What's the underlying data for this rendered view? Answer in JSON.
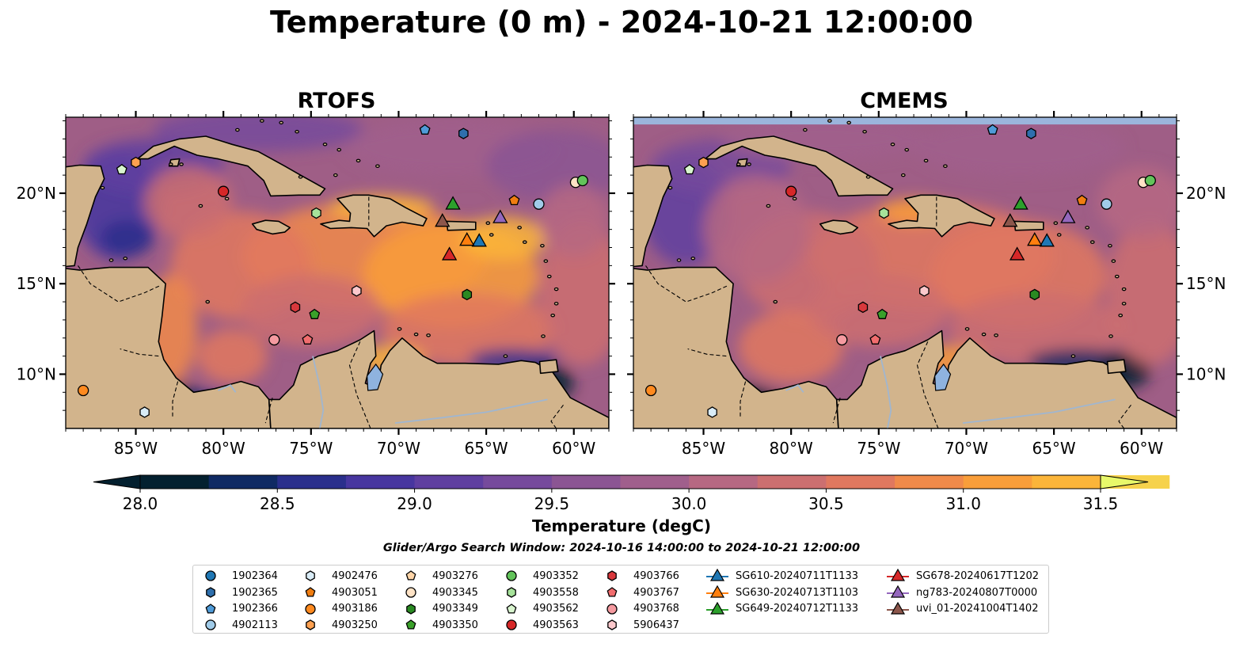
{
  "title": "Temperature (0 m) - 2024-10-21 12:00:00",
  "panels": [
    {
      "title": "RTOFS"
    },
    {
      "title": "CMEMS"
    }
  ],
  "axes": {
    "lon_range": [
      -89,
      -58
    ],
    "lat_range": [
      7,
      24.2
    ],
    "lon_ticks": [
      {
        "value": -85,
        "label": "85°W"
      },
      {
        "value": -80,
        "label": "80°W"
      },
      {
        "value": -75,
        "label": "75°W"
      },
      {
        "value": -70,
        "label": "70°W"
      },
      {
        "value": -65,
        "label": "65°W"
      },
      {
        "value": -60,
        "label": "60°W"
      }
    ],
    "lat_ticks": [
      {
        "value": 20,
        "label": "20°N"
      },
      {
        "value": 15,
        "label": "15°N"
      },
      {
        "value": 10,
        "label": "10°N"
      }
    ]
  },
  "colorbar": {
    "label": "Temperature (degC)",
    "min": 28.0,
    "max": 31.5,
    "step": 0.25,
    "ticks": [
      {
        "value": 28.0,
        "label": "28.0"
      },
      {
        "value": 28.5,
        "label": "28.5"
      },
      {
        "value": 29.0,
        "label": "29.0"
      },
      {
        "value": 29.5,
        "label": "29.5"
      },
      {
        "value": 30.0,
        "label": "30.0"
      },
      {
        "value": 30.5,
        "label": "30.5"
      },
      {
        "value": 31.0,
        "label": "31.0"
      },
      {
        "value": 31.5,
        "label": "31.5"
      }
    ],
    "colors": [
      "#03202f",
      "#0f2a63",
      "#2a2f8c",
      "#47369f",
      "#5f3fa0",
      "#764a9c",
      "#8b5593",
      "#a05f8c",
      "#b66882",
      "#cc6f70",
      "#e0785f",
      "#f08a4a",
      "#f99e3a",
      "#fbb53a",
      "#f6d24c"
    ],
    "extend_under": "#03202f",
    "extend_over": "#e8f86a"
  },
  "search_window": "Glider/Argo Search Window: 2024-10-16 14:00:00 to 2024-10-21 12:00:00",
  "colors": {
    "land": "#d2b48c",
    "coast": "#000000",
    "rivers": "#a0b6d0",
    "lake": "#8fb3df",
    "ocean_base": "#9f5e86",
    "no_data_band": "#9bb5dc"
  },
  "floats": [
    {
      "id": "1902364",
      "marker": "circle",
      "color": "#1f77b4",
      "lon": null,
      "lat": null
    },
    {
      "id": "1902365",
      "marker": "hexagon",
      "color": "#2e6fad",
      "lon": -66.3,
      "lat": 23.3
    },
    {
      "id": "1902366",
      "marker": "pentagon",
      "color": "#4f9bd8",
      "lon": -68.5,
      "lat": 23.5
    },
    {
      "id": "4902113",
      "marker": "circle",
      "color": "#a0cbe8",
      "lon": -62.0,
      "lat": 19.4
    },
    {
      "id": "4902476",
      "marker": "hexagon",
      "color": "#d9ecf7",
      "lon": -84.5,
      "lat": 7.9
    },
    {
      "id": "4903051",
      "marker": "pentagon",
      "color": "#f07d10",
      "lon": -63.4,
      "lat": 19.6
    },
    {
      "id": "4903186",
      "marker": "circle",
      "color": "#ff8a1f",
      "lon": -88.0,
      "lat": 9.1
    },
    {
      "id": "4903250",
      "marker": "hexagon",
      "color": "#ffa050",
      "lon": -85.0,
      "lat": 21.7
    },
    {
      "id": "4903276",
      "marker": "pentagon",
      "color": "#ffd5a8",
      "lon": null,
      "lat": null
    },
    {
      "id": "4903345",
      "marker": "circle",
      "color": "#ffe3c6",
      "lon": -59.9,
      "lat": 20.6
    },
    {
      "id": "4903349",
      "marker": "hexagon",
      "color": "#2a8a22",
      "lon": -66.1,
      "lat": 14.4
    },
    {
      "id": "4903350",
      "marker": "pentagon",
      "color": "#3aa02a",
      "lon": -74.8,
      "lat": 13.3
    },
    {
      "id": "4903352",
      "marker": "circle",
      "color": "#62c35a",
      "lon": -59.5,
      "lat": 20.7
    },
    {
      "id": "4903558",
      "marker": "hexagon",
      "color": "#a6e29a",
      "lon": -74.7,
      "lat": 18.9
    },
    {
      "id": "4903562",
      "marker": "pentagon",
      "color": "#d9f5cf",
      "lon": -85.8,
      "lat": 21.3
    },
    {
      "id": "4903563",
      "marker": "circle",
      "color": "#d62728",
      "lon": -80.0,
      "lat": 20.1
    },
    {
      "id": "4903766",
      "marker": "hexagon",
      "color": "#d8383c",
      "lon": -75.9,
      "lat": 13.7
    },
    {
      "id": "4903767",
      "marker": "pentagon",
      "color": "#f26d6e",
      "lon": -75.2,
      "lat": 11.9
    },
    {
      "id": "4903768",
      "marker": "circle",
      "color": "#f59aa0",
      "lon": -77.1,
      "lat": 11.9
    },
    {
      "id": "5906437",
      "marker": "hexagon",
      "color": "#fcc8cc",
      "lon": -72.4,
      "lat": 14.6
    }
  ],
  "gliders": [
    {
      "id": "SG610-20240711T1133",
      "color": "#1f77b4",
      "lon": -65.4,
      "lat": 17.35
    },
    {
      "id": "SG630-20240713T1103",
      "color": "#ff7f0e",
      "lon": -66.1,
      "lat": 17.4
    },
    {
      "id": "SG649-20240712T1133",
      "color": "#2ca02c",
      "lon": -66.9,
      "lat": 19.4
    },
    {
      "id": "SG678-20240617T1202",
      "color": "#d62728",
      "lon": -67.1,
      "lat": 16.6
    },
    {
      "id": "ng783-20240807T0000",
      "color": "#9467bd",
      "lon": -64.2,
      "lat": 18.65
    },
    {
      "id": "uvi_01-20241004T1402",
      "color": "#8c564b",
      "lon": -67.5,
      "lat": 18.45
    }
  ]
}
